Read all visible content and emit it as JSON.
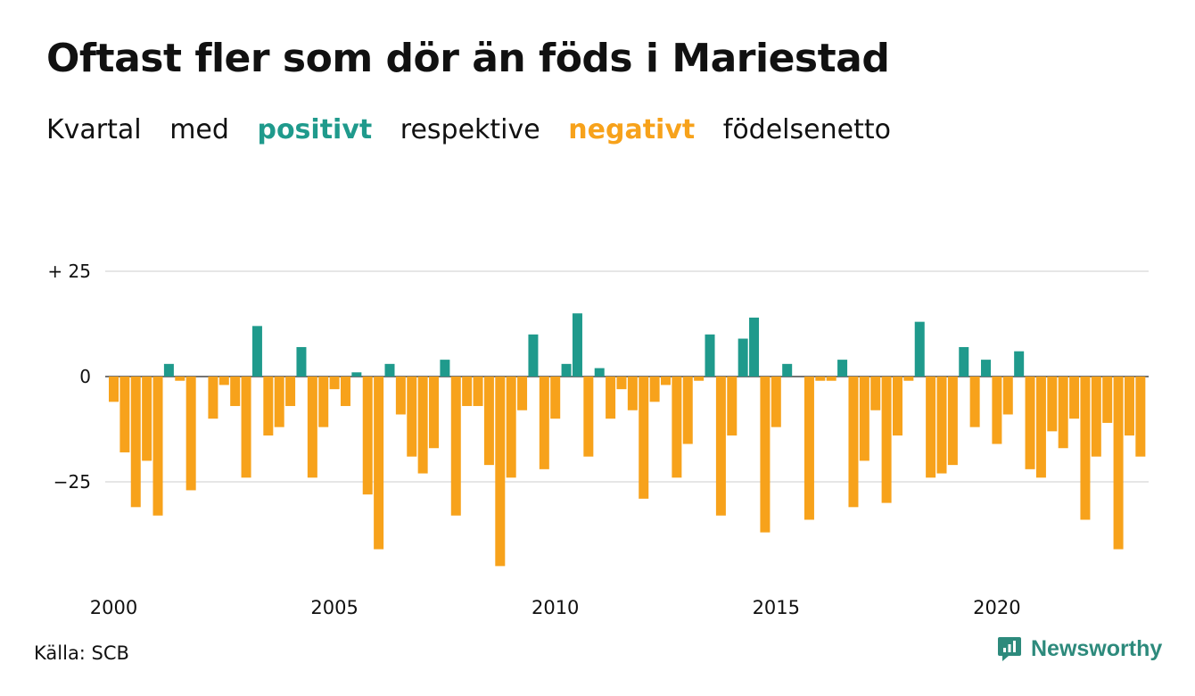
{
  "header": {
    "title": "Oftast fler som dör än föds i Mariestad",
    "subtitle": {
      "part1": "Kvartal",
      "part2": "med",
      "positive": "positivt",
      "part3": "respektive",
      "negative": "negativt",
      "part4": "födelsenetto"
    }
  },
  "footer": {
    "source": "Källa: SCB",
    "brand": "Newsworthy"
  },
  "colors": {
    "positive": "#1f9a8c",
    "negative": "#f7a21b",
    "grid": "#dddddd",
    "brand": "#2d8a7c"
  },
  "chart_data": {
    "type": "bar",
    "x_start": "2000 Q1",
    "frequency": "quarterly",
    "values": [
      -6,
      -18,
      -31,
      -20,
      -33,
      3,
      -1,
      -27,
      0,
      -10,
      -2,
      -7,
      -24,
      12,
      -14,
      -12,
      -7,
      7,
      -24,
      -12,
      -3,
      -7,
      1,
      -28,
      -41,
      3,
      -9,
      -19,
      -23,
      -17,
      4,
      -33,
      -7,
      -7,
      -21,
      -45,
      -24,
      -8,
      10,
      -22,
      -10,
      3,
      15,
      -19,
      2,
      -10,
      -3,
      -8,
      -29,
      -6,
      -2,
      -24,
      -16,
      -1,
      10,
      -33,
      -14,
      9,
      14,
      -37,
      -12,
      3,
      0,
      -34,
      -1,
      -1,
      4,
      -31,
      -20,
      -8,
      -30,
      -14,
      -1,
      13,
      -24,
      -23,
      -21,
      7,
      -12,
      4,
      -16,
      -9,
      6,
      -22,
      -24,
      -13,
      -17,
      -10,
      -34,
      -19,
      -11,
      -41,
      -14,
      -19
    ],
    "ylim": [
      -45,
      25
    ],
    "yticks": [
      25,
      0,
      -25
    ],
    "ytick_labels": [
      "+ 25",
      "0",
      "−25"
    ],
    "xticks": [
      "2000",
      "2005",
      "2010",
      "2015",
      "2020"
    ],
    "grid": true
  }
}
